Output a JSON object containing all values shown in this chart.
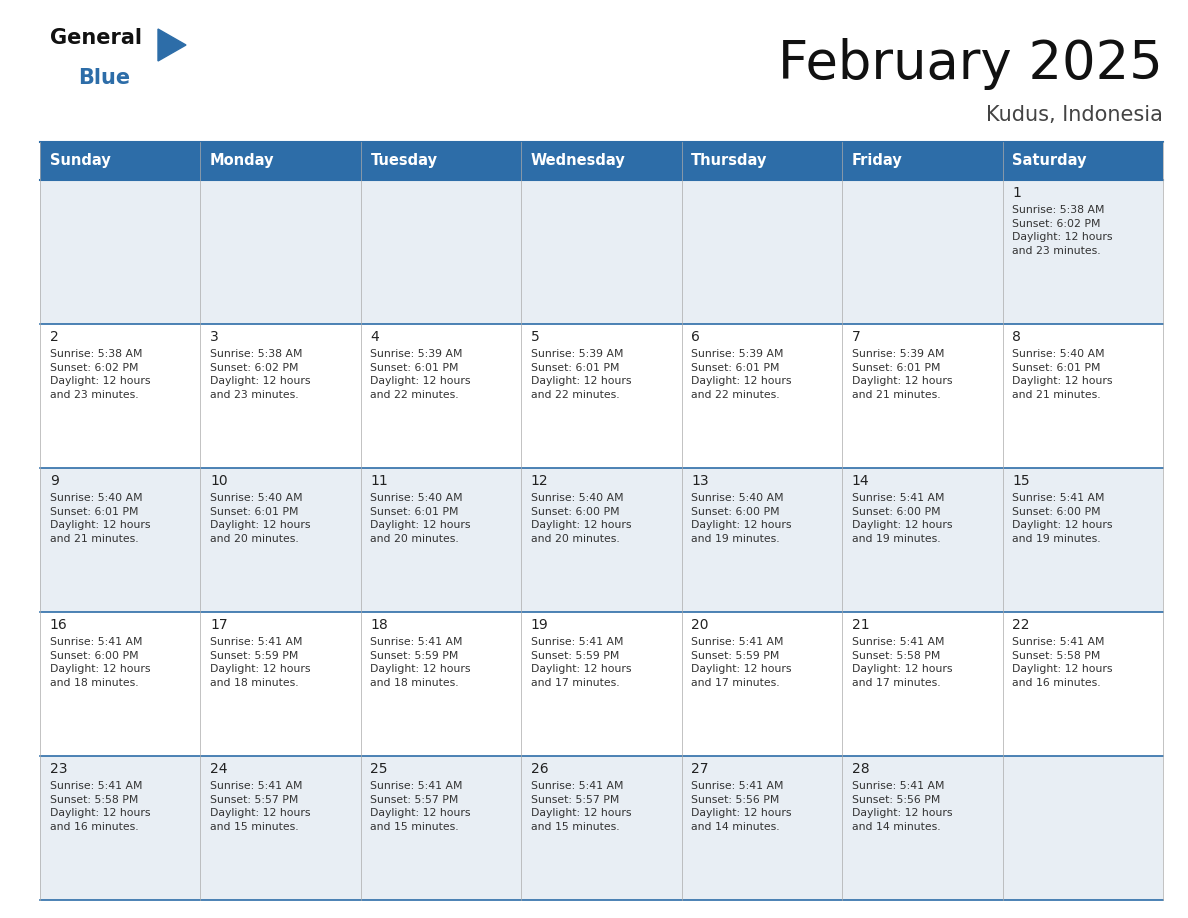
{
  "title": "February 2025",
  "subtitle": "Kudus, Indonesia",
  "header_bg_color": "#2d6da8",
  "header_text_color": "#ffffff",
  "cell_bg_light": "#e8eef4",
  "cell_bg_white": "#ffffff",
  "border_color": "#2d6da8",
  "thin_border_color": "#aaaaaa",
  "day_headers": [
    "Sunday",
    "Monday",
    "Tuesday",
    "Wednesday",
    "Thursday",
    "Friday",
    "Saturday"
  ],
  "title_color": "#111111",
  "subtitle_color": "#444444",
  "day_number_color": "#222222",
  "info_color": "#333333",
  "logo_general_color": "#111111",
  "logo_blue_color": "#2d6da8",
  "calendar": [
    [
      {
        "day": "",
        "info": ""
      },
      {
        "day": "",
        "info": ""
      },
      {
        "day": "",
        "info": ""
      },
      {
        "day": "",
        "info": ""
      },
      {
        "day": "",
        "info": ""
      },
      {
        "day": "",
        "info": ""
      },
      {
        "day": "1",
        "info": "Sunrise: 5:38 AM\nSunset: 6:02 PM\nDaylight: 12 hours\nand 23 minutes."
      }
    ],
    [
      {
        "day": "2",
        "info": "Sunrise: 5:38 AM\nSunset: 6:02 PM\nDaylight: 12 hours\nand 23 minutes."
      },
      {
        "day": "3",
        "info": "Sunrise: 5:38 AM\nSunset: 6:02 PM\nDaylight: 12 hours\nand 23 minutes."
      },
      {
        "day": "4",
        "info": "Sunrise: 5:39 AM\nSunset: 6:01 PM\nDaylight: 12 hours\nand 22 minutes."
      },
      {
        "day": "5",
        "info": "Sunrise: 5:39 AM\nSunset: 6:01 PM\nDaylight: 12 hours\nand 22 minutes."
      },
      {
        "day": "6",
        "info": "Sunrise: 5:39 AM\nSunset: 6:01 PM\nDaylight: 12 hours\nand 22 minutes."
      },
      {
        "day": "7",
        "info": "Sunrise: 5:39 AM\nSunset: 6:01 PM\nDaylight: 12 hours\nand 21 minutes."
      },
      {
        "day": "8",
        "info": "Sunrise: 5:40 AM\nSunset: 6:01 PM\nDaylight: 12 hours\nand 21 minutes."
      }
    ],
    [
      {
        "day": "9",
        "info": "Sunrise: 5:40 AM\nSunset: 6:01 PM\nDaylight: 12 hours\nand 21 minutes."
      },
      {
        "day": "10",
        "info": "Sunrise: 5:40 AM\nSunset: 6:01 PM\nDaylight: 12 hours\nand 20 minutes."
      },
      {
        "day": "11",
        "info": "Sunrise: 5:40 AM\nSunset: 6:01 PM\nDaylight: 12 hours\nand 20 minutes."
      },
      {
        "day": "12",
        "info": "Sunrise: 5:40 AM\nSunset: 6:00 PM\nDaylight: 12 hours\nand 20 minutes."
      },
      {
        "day": "13",
        "info": "Sunrise: 5:40 AM\nSunset: 6:00 PM\nDaylight: 12 hours\nand 19 minutes."
      },
      {
        "day": "14",
        "info": "Sunrise: 5:41 AM\nSunset: 6:00 PM\nDaylight: 12 hours\nand 19 minutes."
      },
      {
        "day": "15",
        "info": "Sunrise: 5:41 AM\nSunset: 6:00 PM\nDaylight: 12 hours\nand 19 minutes."
      }
    ],
    [
      {
        "day": "16",
        "info": "Sunrise: 5:41 AM\nSunset: 6:00 PM\nDaylight: 12 hours\nand 18 minutes."
      },
      {
        "day": "17",
        "info": "Sunrise: 5:41 AM\nSunset: 5:59 PM\nDaylight: 12 hours\nand 18 minutes."
      },
      {
        "day": "18",
        "info": "Sunrise: 5:41 AM\nSunset: 5:59 PM\nDaylight: 12 hours\nand 18 minutes."
      },
      {
        "day": "19",
        "info": "Sunrise: 5:41 AM\nSunset: 5:59 PM\nDaylight: 12 hours\nand 17 minutes."
      },
      {
        "day": "20",
        "info": "Sunrise: 5:41 AM\nSunset: 5:59 PM\nDaylight: 12 hours\nand 17 minutes."
      },
      {
        "day": "21",
        "info": "Sunrise: 5:41 AM\nSunset: 5:58 PM\nDaylight: 12 hours\nand 17 minutes."
      },
      {
        "day": "22",
        "info": "Sunrise: 5:41 AM\nSunset: 5:58 PM\nDaylight: 12 hours\nand 16 minutes."
      }
    ],
    [
      {
        "day": "23",
        "info": "Sunrise: 5:41 AM\nSunset: 5:58 PM\nDaylight: 12 hours\nand 16 minutes."
      },
      {
        "day": "24",
        "info": "Sunrise: 5:41 AM\nSunset: 5:57 PM\nDaylight: 12 hours\nand 15 minutes."
      },
      {
        "day": "25",
        "info": "Sunrise: 5:41 AM\nSunset: 5:57 PM\nDaylight: 12 hours\nand 15 minutes."
      },
      {
        "day": "26",
        "info": "Sunrise: 5:41 AM\nSunset: 5:57 PM\nDaylight: 12 hours\nand 15 minutes."
      },
      {
        "day": "27",
        "info": "Sunrise: 5:41 AM\nSunset: 5:56 PM\nDaylight: 12 hours\nand 14 minutes."
      },
      {
        "day": "28",
        "info": "Sunrise: 5:41 AM\nSunset: 5:56 PM\nDaylight: 12 hours\nand 14 minutes."
      },
      {
        "day": "",
        "info": ""
      }
    ]
  ],
  "figsize": [
    11.88,
    9.18
  ],
  "dpi": 100
}
